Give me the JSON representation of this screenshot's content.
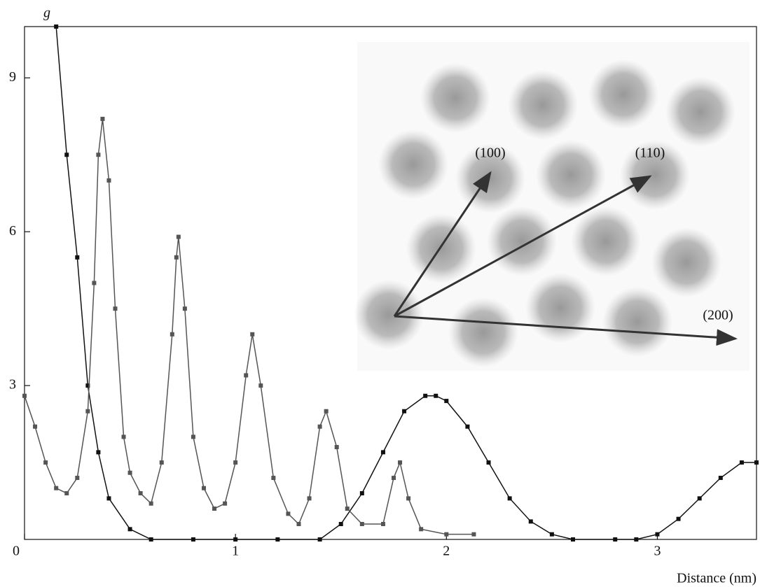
{
  "chart_data": {
    "type": "line",
    "y_label": "g",
    "x_label": "Distance (nm)",
    "xlim": [
      0,
      3.47
    ],
    "ylim": [
      0,
      10
    ],
    "xticks": [
      0,
      1,
      2,
      3
    ],
    "yticks": [
      3,
      6,
      9
    ],
    "annotations": [
      "(100)",
      "(110)",
      "(200)"
    ],
    "series": [
      {
        "color": "#111111",
        "x": [
          0.15,
          0.2,
          0.25,
          0.3,
          0.35,
          0.4,
          0.5,
          0.6,
          0.8,
          1.0,
          1.2,
          1.4,
          1.5,
          1.6,
          1.7,
          1.8,
          1.9,
          1.95,
          2.0,
          2.1,
          2.2,
          2.3,
          2.4,
          2.5,
          2.6,
          2.8,
          2.9,
          3.0,
          3.1,
          3.2,
          3.3,
          3.4,
          3.47
        ],
        "values": [
          10,
          7.5,
          5.5,
          3,
          1.7,
          0.8,
          0.2,
          0,
          0,
          0,
          0,
          0,
          0.3,
          0.9,
          1.7,
          2.5,
          2.8,
          2.8,
          2.7,
          2.2,
          1.5,
          0.8,
          0.35,
          0.1,
          0,
          0,
          0,
          0.1,
          0.4,
          0.8,
          1.2,
          1.5,
          1.5
        ]
      },
      {
        "color": "#555555",
        "x": [
          0,
          0.05,
          0.1,
          0.15,
          0.2,
          0.25,
          0.3,
          0.33,
          0.35,
          0.37,
          0.4,
          0.43,
          0.47,
          0.5,
          0.55,
          0.6,
          0.65,
          0.7,
          0.72,
          0.73,
          0.76,
          0.8,
          0.85,
          0.9,
          0.95,
          1.0,
          1.05,
          1.08,
          1.12,
          1.18,
          1.25,
          1.3,
          1.35,
          1.4,
          1.43,
          1.48,
          1.53,
          1.6,
          1.7,
          1.75,
          1.78,
          1.82,
          1.88,
          2.0,
          2.13
        ],
        "values": [
          2.8,
          2.2,
          1.5,
          1.0,
          0.9,
          1.2,
          2.5,
          5,
          7.5,
          8.2,
          7,
          4.5,
          2,
          1.3,
          0.9,
          0.7,
          1.5,
          4,
          5.5,
          5.9,
          4.5,
          2,
          1,
          0.6,
          0.7,
          1.5,
          3.2,
          4.0,
          3.0,
          1.2,
          0.5,
          0.3,
          0.8,
          2.2,
          2.5,
          1.8,
          0.6,
          0.3,
          0.3,
          1.2,
          1.5,
          0.8,
          0.2,
          0.1,
          0.1
        ]
      }
    ]
  }
}
